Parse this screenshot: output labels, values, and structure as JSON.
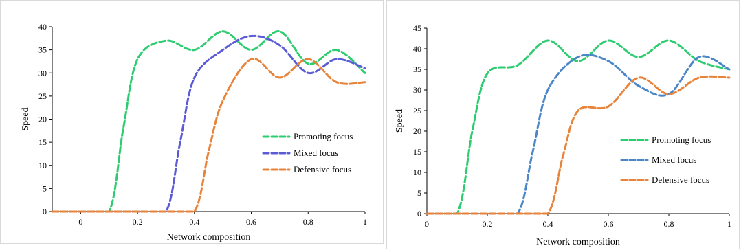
{
  "chart_data": [
    {
      "type": "line",
      "xlabel": "Network composition",
      "ylabel": "Speed",
      "xlim": [
        -0.1,
        1
      ],
      "ylim": [
        0,
        40
      ],
      "xticks": [
        0,
        0.2,
        0.4,
        0.6,
        0.8,
        1
      ],
      "xtick_labels": [
        "0",
        "0.2",
        "0.4",
        "0.6",
        "0.8",
        "1"
      ],
      "yticks": [
        0,
        5,
        10,
        15,
        20,
        25,
        30,
        35,
        40
      ],
      "ytick_labels": [
        "0",
        "5",
        "10",
        "15",
        "20",
        "25",
        "30",
        "35",
        "40"
      ],
      "legend_position": "right",
      "grid": false,
      "series": [
        {
          "name": "Promoting focus",
          "color": "#2ecc71",
          "x": [
            -0.1,
            0,
            0.1,
            0.15,
            0.2,
            0.3,
            0.4,
            0.5,
            0.6,
            0.7,
            0.8,
            0.9,
            1
          ],
          "y": [
            0,
            0,
            0,
            18,
            33,
            37,
            35,
            39,
            35,
            39,
            32,
            35,
            30
          ]
        },
        {
          "name": "Mixed focus",
          "color": "#5b5bd6",
          "x": [
            -0.1,
            0,
            0.1,
            0.2,
            0.3,
            0.35,
            0.4,
            0.5,
            0.6,
            0.7,
            0.8,
            0.9,
            1
          ],
          "y": [
            0,
            0,
            0,
            0,
            0,
            15,
            29,
            35,
            38,
            36,
            30,
            33,
            31
          ]
        },
        {
          "name": "Defensive focus",
          "color": "#e8833a",
          "x": [
            -0.1,
            0,
            0.1,
            0.2,
            0.3,
            0.4,
            0.45,
            0.5,
            0.6,
            0.7,
            0.8,
            0.9,
            1
          ],
          "y": [
            0,
            0,
            0,
            0,
            0,
            0,
            13,
            24,
            33,
            29,
            33,
            28,
            28
          ]
        }
      ]
    },
    {
      "type": "line",
      "xlabel": "Network composition",
      "ylabel": "Speed",
      "xlim": [
        0,
        1
      ],
      "ylim": [
        0,
        45
      ],
      "xticks": [
        0,
        0.2,
        0.4,
        0.6,
        0.8,
        1
      ],
      "xtick_labels": [
        "0",
        "0.2",
        "0.4",
        "0.6",
        "0.8",
        "1"
      ],
      "yticks": [
        0,
        5,
        10,
        15,
        20,
        25,
        30,
        35,
        40,
        45
      ],
      "ytick_labels": [
        "0",
        "5",
        "10",
        "15",
        "20",
        "25",
        "30",
        "35",
        "40",
        "45"
      ],
      "legend_position": "right",
      "grid": false,
      "series": [
        {
          "name": "Promoting focus",
          "color": "#2ecc71",
          "x": [
            0,
            0.1,
            0.15,
            0.2,
            0.3,
            0.4,
            0.5,
            0.6,
            0.7,
            0.8,
            0.9,
            1
          ],
          "y": [
            0,
            0,
            20,
            34,
            36,
            42,
            37,
            42,
            38,
            42,
            37,
            35
          ]
        },
        {
          "name": "Mixed focus",
          "color": "#4a86c8",
          "x": [
            0,
            0.1,
            0.2,
            0.3,
            0.35,
            0.4,
            0.5,
            0.6,
            0.7,
            0.8,
            0.9,
            1
          ],
          "y": [
            0,
            0,
            0,
            0,
            15,
            30,
            38,
            37,
            31,
            29,
            38,
            35
          ]
        },
        {
          "name": "Defensive focus",
          "color": "#e8833a",
          "x": [
            0,
            0.1,
            0.2,
            0.3,
            0.4,
            0.45,
            0.5,
            0.6,
            0.7,
            0.8,
            0.9,
            1
          ],
          "y": [
            0,
            0,
            0,
            0,
            0,
            14,
            25,
            26,
            33,
            29,
            33,
            33
          ]
        }
      ]
    }
  ]
}
